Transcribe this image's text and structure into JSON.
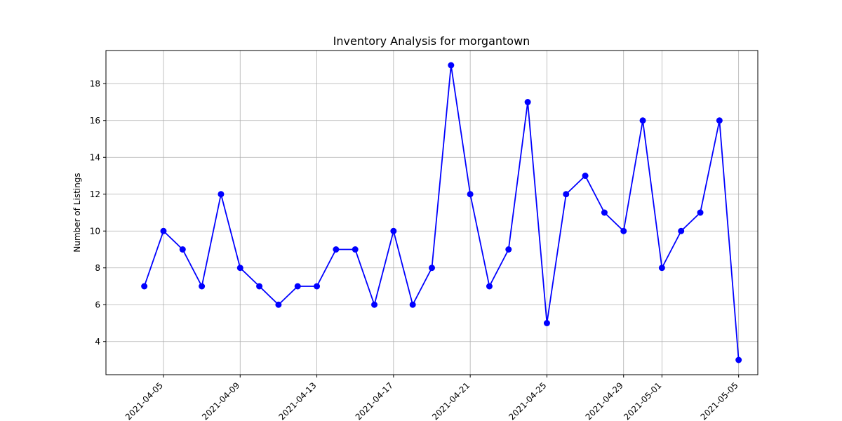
{
  "chart_data": {
    "type": "line",
    "title": "Inventory Analysis for morgantown",
    "xlabel": "",
    "ylabel": "Number of Listings",
    "x": [
      "2021-04-04",
      "2021-04-05",
      "2021-04-06",
      "2021-04-07",
      "2021-04-08",
      "2021-04-09",
      "2021-04-10",
      "2021-04-11",
      "2021-04-12",
      "2021-04-13",
      "2021-04-14",
      "2021-04-15",
      "2021-04-16",
      "2021-04-17",
      "2021-04-18",
      "2021-04-19",
      "2021-04-20",
      "2021-04-21",
      "2021-04-22",
      "2021-04-23",
      "2021-04-24",
      "2021-04-25",
      "2021-04-26",
      "2021-04-27",
      "2021-04-28",
      "2021-04-29",
      "2021-04-30",
      "2021-05-01",
      "2021-05-02",
      "2021-05-03",
      "2021-05-04",
      "2021-05-05"
    ],
    "values": [
      7,
      10,
      9,
      7,
      12,
      8,
      7,
      6,
      7,
      7,
      9,
      9,
      6,
      10,
      6,
      8,
      19,
      12,
      7,
      9,
      17,
      5,
      12,
      13,
      11,
      10,
      16,
      8,
      10,
      11,
      16,
      3
    ],
    "x_ticks": [
      "2021-04-05",
      "2021-04-09",
      "2021-04-13",
      "2021-04-17",
      "2021-04-21",
      "2021-04-25",
      "2021-04-29",
      "2021-05-01",
      "2021-05-05"
    ],
    "y_ticks": [
      4,
      6,
      8,
      10,
      12,
      14,
      16,
      18
    ],
    "ylim": [
      2.2,
      19.8
    ],
    "xlim": [
      "2021-04-02",
      "2021-05-06"
    ],
    "grid": true,
    "line_color": "#0000ff",
    "marker": "circle"
  }
}
